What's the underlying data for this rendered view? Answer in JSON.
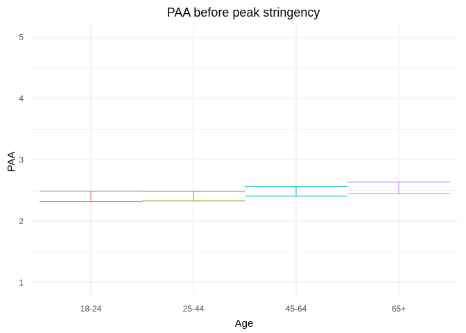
{
  "chart_data": {
    "type": "errorbar",
    "title": "PAA before peak stringency",
    "xlabel": "Age",
    "ylabel": "PAA",
    "categories": [
      "18-24",
      "25-44",
      "45-64",
      "65+"
    ],
    "yticks": [
      "1",
      "2",
      "3",
      "4",
      "5"
    ],
    "ylim": [
      0.8,
      5.2
    ],
    "grid": true,
    "legend": "none",
    "series": [
      {
        "category": "18-24",
        "lower": 2.32,
        "upper": 2.49,
        "color": "#F8766D"
      },
      {
        "category": "25-44",
        "lower": 2.33,
        "upper": 2.49,
        "color": "#7CAE00"
      },
      {
        "category": "45-64",
        "lower": 2.41,
        "upper": 2.57,
        "color": "#00BFC4"
      },
      {
        "category": "65+",
        "lower": 2.45,
        "upper": 2.64,
        "color": "#C77CFF"
      }
    ]
  },
  "colors": {
    "grid": "#ebebeb",
    "tick_text": "#4d4d4d"
  }
}
